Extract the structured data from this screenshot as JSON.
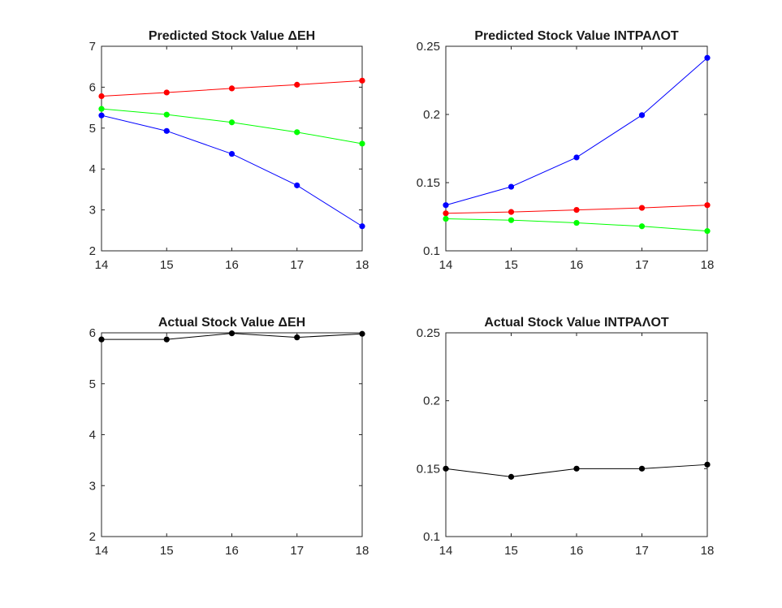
{
  "figure": {
    "background": "#ffffff"
  },
  "chart_data": [
    {
      "type": "line",
      "title": "Predicted Stock Value ΔΕΗ",
      "xlabel": "",
      "ylabel": "",
      "x": [
        14,
        15,
        16,
        17,
        18
      ],
      "xlim": [
        14,
        18
      ],
      "ylim": [
        2,
        7
      ],
      "xticks": [
        "14",
        "15",
        "16",
        "17",
        "18"
      ],
      "yticks": [
        "2",
        "3",
        "4",
        "5",
        "6",
        "7"
      ],
      "grid": false,
      "series": [
        {
          "color": "#ff0000",
          "values": [
            5.78,
            5.87,
            5.97,
            6.06,
            6.16
          ]
        },
        {
          "color": "#00ff00",
          "values": [
            5.47,
            5.33,
            5.14,
            4.9,
            4.62
          ]
        },
        {
          "color": "#0000ff",
          "values": [
            5.31,
            4.93,
            4.37,
            3.6,
            2.6
          ]
        }
      ]
    },
    {
      "type": "line",
      "title": "Predicted Stock Value INTPAΛOT",
      "xlabel": "",
      "ylabel": "",
      "x": [
        14,
        15,
        16,
        17,
        18
      ],
      "xlim": [
        14,
        18
      ],
      "ylim": [
        0.1,
        0.25
      ],
      "xticks": [
        "14",
        "15",
        "16",
        "17",
        "18"
      ],
      "yticks": [
        "0.1",
        "0.15",
        "0.2",
        "0.25"
      ],
      "grid": false,
      "series": [
        {
          "color": "#0000ff",
          "values": [
            0.1335,
            0.147,
            0.1685,
            0.1995,
            0.2415
          ]
        },
        {
          "color": "#ff0000",
          "values": [
            0.1275,
            0.1285,
            0.13,
            0.1315,
            0.1335
          ]
        },
        {
          "color": "#00ff00",
          "values": [
            0.1235,
            0.1225,
            0.1205,
            0.118,
            0.1145
          ]
        }
      ]
    },
    {
      "type": "line",
      "title": "Actual Stock Value ΔΕΗ",
      "xlabel": "",
      "ylabel": "",
      "x": [
        14,
        15,
        16,
        17,
        18
      ],
      "xlim": [
        14,
        18
      ],
      "ylim": [
        2,
        6
      ],
      "xticks": [
        "14",
        "15",
        "16",
        "17",
        "18"
      ],
      "yticks": [
        "2",
        "3",
        "4",
        "5",
        "6"
      ],
      "grid": false,
      "series": [
        {
          "color": "#000000",
          "values": [
            5.87,
            5.87,
            5.99,
            5.91,
            5.98
          ]
        }
      ]
    },
    {
      "type": "line",
      "title": "Actual Stock Value INTPAΛOT",
      "xlabel": "",
      "ylabel": "",
      "x": [
        14,
        15,
        16,
        17,
        18
      ],
      "xlim": [
        14,
        18
      ],
      "ylim": [
        0.1,
        0.25
      ],
      "xticks": [
        "14",
        "15",
        "16",
        "17",
        "18"
      ],
      "yticks": [
        "0.1",
        "0.15",
        "0.2",
        "0.25"
      ],
      "grid": false,
      "series": [
        {
          "color": "#000000",
          "values": [
            0.15,
            0.144,
            0.15,
            0.15,
            0.153
          ]
        }
      ]
    }
  ]
}
